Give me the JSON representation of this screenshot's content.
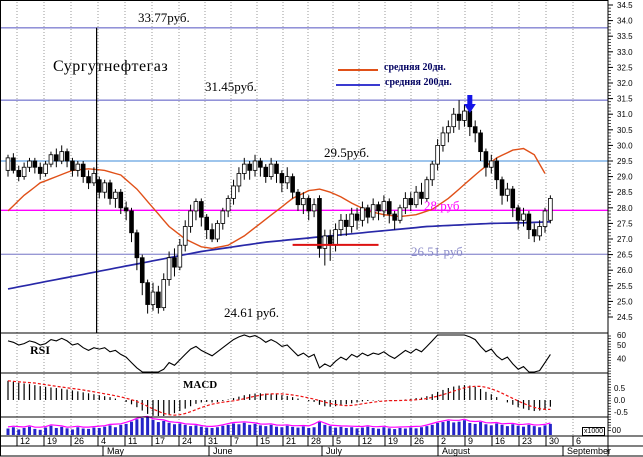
{
  "title": "Сургутнефтегаз",
  "legend": {
    "ma20_label": "средняя 20дн.",
    "ma200_label": "средняя 200дн."
  },
  "panel_labels": {
    "rsi": "RSI",
    "macd": "MACD",
    "volume_scale": "x1000",
    "volume_tick": "00"
  },
  "colors": {
    "level_periwinkle": "#8282d2",
    "level_lightblue": "#7fb2e6",
    "level_magenta": "#ff00ff",
    "level_gray_purple": "#9898d4",
    "ma20": "#e05018",
    "ma200": "#2828a8",
    "arrow_blue": "#1414e6",
    "support_red": "#dd1111",
    "volume_bar": "#2424c8",
    "volume_line": "#ff00ff",
    "macd_signal": "#ee1111",
    "candle_up": "#ffffff",
    "candle_down": "#000000"
  },
  "chart_data": {
    "type": "candlestick",
    "instrument": "Сургутнефтегаз",
    "currency_unit": "руб.",
    "levels": [
      {
        "label": "33.77руб.",
        "price": 33.77,
        "line_color": "#8282d2",
        "text_color": "#000000"
      },
      {
        "label": "31.45руб.",
        "price": 31.45,
        "line_color": "#8282d2",
        "text_color": "#000000"
      },
      {
        "label": "29.5руб.",
        "price": 29.5,
        "line_color": "#7fb2e6",
        "text_color": "#000000"
      },
      {
        "label": "28 руб",
        "price": 27.92,
        "line_color": "#ff00ff",
        "text_color": "#ff00ff"
      },
      {
        "label": "26.51 руб",
        "price": 26.51,
        "line_color": "#9898d4",
        "text_color": "#8b8bc8"
      }
    ],
    "low_marker": {
      "label": "24.61 руб.",
      "price": 24.61
    },
    "annotations": {
      "down_arrow": {
        "near_index": 86,
        "color": "#1414e6"
      },
      "vertical_line": {
        "x_index": 16.5
      },
      "support_segment": {
        "price": 26.81,
        "from_index": 53,
        "to_index": 69,
        "color": "#dd1111"
      }
    },
    "price_axis_ticks": [
      34.5,
      34.0,
      33.5,
      33.0,
      32.5,
      32.0,
      31.5,
      31.0,
      30.5,
      30.0,
      29.5,
      29.0,
      28.5,
      28.0,
      27.5,
      27.0,
      26.5,
      26.0,
      25.5,
      25.0,
      24.5
    ],
    "rsi_axis_ticks": [
      60,
      50,
      40
    ],
    "macd_axis_ticks": [
      "0.5",
      "0.0",
      "-0.5"
    ],
    "week_tick_x": [
      17,
      44,
      71,
      98,
      125,
      152,
      179,
      205,
      231,
      257,
      283,
      308,
      333,
      359,
      385,
      411,
      438,
      465,
      492,
      519,
      546,
      573
    ],
    "week_labels": [
      "12",
      "19",
      "26",
      "4",
      "11",
      "17",
      "24",
      "31",
      "7",
      "15",
      "21",
      "28",
      "5",
      "12",
      "19",
      "26",
      "2",
      "9",
      "16",
      "23",
      "30",
      "6"
    ],
    "month_x": [
      103,
      209,
      322,
      438,
      563
    ],
    "months": [
      "May",
      "June",
      "July",
      "August",
      "September"
    ],
    "candles_ohlc": [
      [
        29.2,
        29.7,
        29.0,
        29.6
      ],
      [
        29.6,
        29.75,
        29.1,
        29.2
      ],
      [
        29.2,
        29.35,
        28.85,
        29.0
      ],
      [
        29.0,
        29.45,
        28.9,
        29.3
      ],
      [
        29.3,
        29.6,
        29.15,
        29.5
      ],
      [
        29.5,
        29.6,
        29.1,
        29.3
      ],
      [
        29.3,
        29.45,
        28.9,
        29.1
      ],
      [
        29.1,
        29.5,
        29.0,
        29.4
      ],
      [
        29.4,
        29.8,
        29.3,
        29.7
      ],
      [
        29.7,
        29.9,
        29.3,
        29.5
      ],
      [
        29.5,
        30.0,
        29.4,
        29.8
      ],
      [
        29.8,
        29.9,
        29.3,
        29.5
      ],
      [
        29.5,
        29.6,
        29.0,
        29.2
      ],
      [
        29.2,
        29.5,
        29.0,
        29.4
      ],
      [
        29.4,
        29.5,
        28.8,
        29.0
      ],
      [
        29.0,
        29.2,
        28.6,
        28.8
      ],
      [
        28.8,
        29.3,
        28.7,
        29.1
      ],
      [
        28.9,
        29.0,
        28.3,
        28.5
      ],
      [
        28.5,
        28.9,
        28.3,
        28.8
      ],
      [
        28.8,
        28.9,
        28.1,
        28.3
      ],
      [
        28.3,
        28.6,
        28.0,
        28.5
      ],
      [
        28.5,
        28.6,
        27.8,
        28.0
      ],
      [
        28.0,
        28.2,
        27.6,
        27.9
      ],
      [
        27.9,
        28.0,
        26.9,
        27.2
      ],
      [
        27.2,
        27.3,
        26.0,
        26.4
      ],
      [
        26.4,
        26.5,
        25.2,
        25.6
      ],
      [
        25.6,
        25.7,
        24.61,
        24.9
      ],
      [
        24.9,
        25.6,
        24.7,
        25.3
      ],
      [
        25.3,
        25.5,
        24.61,
        24.8
      ],
      [
        24.8,
        25.9,
        24.7,
        25.7
      ],
      [
        25.7,
        26.6,
        25.5,
        26.4
      ],
      [
        26.4,
        26.7,
        25.8,
        26.1
      ],
      [
        26.1,
        27.0,
        26.0,
        26.8
      ],
      [
        26.8,
        27.6,
        26.6,
        27.4
      ],
      [
        27.4,
        28.1,
        27.2,
        27.9
      ],
      [
        27.9,
        28.3,
        27.6,
        28.2
      ],
      [
        28.2,
        28.3,
        27.4,
        27.7
      ],
      [
        27.7,
        27.8,
        27.0,
        27.3
      ],
      [
        27.3,
        27.5,
        26.9,
        27.0
      ],
      [
        27.0,
        27.6,
        26.9,
        27.5
      ],
      [
        27.5,
        28.0,
        27.3,
        27.9
      ],
      [
        27.9,
        28.4,
        27.7,
        28.3
      ],
      [
        28.3,
        28.9,
        28.1,
        28.7
      ],
      [
        28.7,
        29.3,
        28.5,
        29.1
      ],
      [
        29.1,
        29.6,
        28.9,
        29.4
      ],
      [
        29.4,
        29.5,
        28.9,
        29.2
      ],
      [
        29.2,
        29.7,
        29.0,
        29.5
      ],
      [
        29.5,
        29.6,
        29.0,
        29.3
      ],
      [
        29.3,
        29.4,
        28.8,
        29.0
      ],
      [
        29.0,
        29.6,
        28.9,
        29.4
      ],
      [
        29.4,
        29.5,
        28.8,
        29.1
      ],
      [
        29.1,
        29.2,
        28.5,
        28.8
      ],
      [
        28.8,
        29.3,
        28.6,
        29.0
      ],
      [
        29.0,
        29.1,
        28.3,
        28.5
      ],
      [
        28.5,
        28.6,
        27.9,
        28.1
      ],
      [
        28.1,
        28.5,
        27.8,
        28.3
      ],
      [
        28.3,
        28.4,
        27.6,
        27.9
      ],
      [
        27.9,
        28.3,
        27.7,
        28.1
      ],
      [
        28.3,
        28.4,
        26.4,
        26.7
      ],
      [
        26.7,
        27.3,
        26.15,
        27.1
      ],
      [
        27.1,
        27.3,
        26.3,
        26.8
      ],
      [
        26.8,
        27.5,
        26.6,
        27.3
      ],
      [
        27.3,
        27.8,
        27.1,
        27.6
      ],
      [
        27.6,
        27.8,
        27.1,
        27.4
      ],
      [
        27.4,
        28.0,
        27.2,
        27.8
      ],
      [
        27.8,
        28.0,
        27.3,
        27.6
      ],
      [
        27.6,
        28.2,
        27.4,
        28.0
      ],
      [
        28.0,
        28.1,
        27.5,
        27.7
      ],
      [
        27.7,
        28.3,
        27.6,
        28.1
      ],
      [
        28.1,
        28.2,
        27.6,
        27.9
      ],
      [
        27.9,
        28.4,
        27.7,
        28.2
      ],
      [
        28.2,
        28.3,
        27.5,
        27.8
      ],
      [
        27.8,
        27.9,
        27.3,
        27.6
      ],
      [
        27.6,
        28.1,
        27.5,
        28.0
      ],
      [
        28.0,
        28.5,
        27.8,
        28.3
      ],
      [
        28.3,
        28.5,
        27.9,
        28.1
      ],
      [
        28.1,
        28.7,
        28.0,
        28.5
      ],
      [
        28.5,
        28.8,
        28.1,
        28.3
      ],
      [
        28.3,
        29.0,
        28.2,
        28.9
      ],
      [
        28.9,
        29.5,
        28.7,
        29.4
      ],
      [
        29.4,
        30.2,
        29.2,
        30.0
      ],
      [
        30.0,
        30.6,
        29.8,
        30.4
      ],
      [
        30.4,
        30.8,
        30.1,
        30.6
      ],
      [
        30.6,
        31.2,
        30.4,
        31.0
      ],
      [
        31.0,
        31.45,
        30.5,
        30.8
      ],
      [
        30.8,
        31.3,
        30.6,
        31.1
      ],
      [
        31.1,
        31.2,
        30.3,
        30.6
      ],
      [
        30.6,
        30.8,
        30.1,
        30.4
      ],
      [
        30.4,
        30.5,
        29.5,
        29.8
      ],
      [
        29.8,
        29.9,
        29.0,
        29.3
      ],
      [
        29.3,
        29.7,
        29.1,
        29.5
      ],
      [
        29.5,
        29.6,
        28.6,
        28.9
      ],
      [
        28.9,
        29.0,
        28.1,
        28.4
      ],
      [
        28.4,
        28.8,
        28.2,
        28.6
      ],
      [
        28.6,
        28.7,
        27.7,
        28.0
      ],
      [
        28.0,
        28.1,
        27.3,
        27.6
      ],
      [
        27.6,
        28.0,
        27.4,
        27.8
      ],
      [
        27.8,
        27.9,
        27.0,
        27.3
      ],
      [
        27.3,
        27.5,
        26.9,
        27.1
      ],
      [
        27.1,
        27.6,
        26.95,
        27.4
      ],
      [
        27.4,
        28.0,
        27.2,
        27.9
      ],
      [
        27.6,
        28.4,
        27.5,
        28.3
      ]
    ],
    "ma20_anchors": [
      [
        0,
        27.9
      ],
      [
        3,
        28.4
      ],
      [
        6,
        28.8
      ],
      [
        9,
        29.0
      ],
      [
        12,
        29.2
      ],
      [
        15,
        29.25
      ],
      [
        18,
        29.2
      ],
      [
        21,
        29.05
      ],
      [
        24,
        28.6
      ],
      [
        27,
        28.0
      ],
      [
        30,
        27.4
      ],
      [
        33,
        27.0
      ],
      [
        36,
        26.75
      ],
      [
        38,
        26.7
      ],
      [
        41,
        26.8
      ],
      [
        44,
        27.1
      ],
      [
        47,
        27.5
      ],
      [
        50,
        27.9
      ],
      [
        53,
        28.3
      ],
      [
        56,
        28.55
      ],
      [
        58,
        28.6
      ],
      [
        60,
        28.5
      ],
      [
        62,
        28.35
      ],
      [
        64,
        28.15
      ],
      [
        67,
        27.9
      ],
      [
        70,
        27.78
      ],
      [
        73,
        27.72
      ],
      [
        76,
        27.78
      ],
      [
        79,
        27.95
      ],
      [
        82,
        28.3
      ],
      [
        85,
        28.75
      ],
      [
        88,
        29.2
      ],
      [
        91,
        29.6
      ],
      [
        94,
        29.85
      ],
      [
        96,
        29.9
      ],
      [
        98,
        29.7
      ],
      [
        100,
        29.1
      ]
    ],
    "ma200_anchors": [
      [
        0,
        25.4
      ],
      [
        6,
        25.6
      ],
      [
        12,
        25.8
      ],
      [
        18,
        26.0
      ],
      [
        24,
        26.2
      ],
      [
        30,
        26.4
      ],
      [
        36,
        26.6
      ],
      [
        42,
        26.75
      ],
      [
        48,
        26.9
      ],
      [
        54,
        27.0
      ],
      [
        60,
        27.1
      ],
      [
        66,
        27.2
      ],
      [
        72,
        27.3
      ],
      [
        78,
        27.4
      ],
      [
        84,
        27.45
      ],
      [
        90,
        27.5
      ],
      [
        96,
        27.52
      ],
      [
        101,
        27.55
      ]
    ],
    "rsi": [
      53,
      52,
      50,
      51,
      53,
      52,
      50,
      51,
      54,
      53,
      55,
      53,
      50,
      51,
      48,
      46,
      48,
      47,
      48,
      45,
      46,
      43,
      41,
      37,
      33,
      29,
      26,
      30,
      27,
      32,
      37,
      35,
      39,
      43,
      47,
      49,
      46,
      44,
      42,
      45,
      48,
      51,
      54,
      56,
      58,
      56,
      57,
      55,
      52,
      54,
      52,
      49,
      50,
      46,
      42,
      44,
      41,
      43,
      33,
      36,
      34,
      38,
      41,
      39,
      43,
      41,
      44,
      42,
      44,
      43,
      45,
      42,
      40,
      43,
      46,
      44,
      47,
      45,
      49,
      53,
      58,
      60,
      61,
      62,
      60,
      61,
      56,
      54,
      49,
      45,
      47,
      42,
      39,
      41,
      36,
      32,
      34,
      30,
      28,
      31,
      37,
      43
    ],
    "macd_hist": [
      0.8,
      0.76,
      0.72,
      0.69,
      0.66,
      0.62,
      0.58,
      0.55,
      0.52,
      0.5,
      0.47,
      0.44,
      0.4,
      0.36,
      0.32,
      0.28,
      0.24,
      0.2,
      0.16,
      0.12,
      0.06,
      0.0,
      -0.08,
      -0.18,
      -0.3,
      -0.44,
      -0.58,
      -0.66,
      -0.7,
      -0.68,
      -0.62,
      -0.55,
      -0.46,
      -0.36,
      -0.26,
      -0.16,
      -0.1,
      -0.08,
      -0.1,
      -0.08,
      -0.04,
      0.02,
      0.08,
      0.14,
      0.2,
      0.24,
      0.27,
      0.28,
      0.27,
      0.26,
      0.24,
      0.2,
      0.17,
      0.12,
      0.06,
      0.0,
      -0.05,
      -0.08,
      -0.2,
      -0.26,
      -0.28,
      -0.26,
      -0.22,
      -0.18,
      -0.14,
      -0.1,
      -0.06,
      -0.04,
      -0.02,
      -0.02,
      0.0,
      -0.02,
      -0.04,
      -0.02,
      0.02,
      0.04,
      0.08,
      0.1,
      0.16,
      0.24,
      0.34,
      0.42,
      0.5,
      0.56,
      0.6,
      0.62,
      0.6,
      0.55,
      0.46,
      0.34,
      0.24,
      0.12,
      0.0,
      -0.1,
      -0.2,
      -0.3,
      -0.36,
      -0.42,
      -0.46,
      -0.44,
      -0.38,
      -0.28
    ],
    "volume": [
      35,
      42,
      30,
      38,
      45,
      33,
      28,
      40,
      50,
      38,
      44,
      36,
      30,
      42,
      35,
      33,
      40,
      38,
      45,
      52,
      42,
      55,
      60,
      72,
      85,
      92,
      95,
      82,
      70,
      76,
      66,
      58,
      62,
      55,
      48,
      52,
      45,
      40,
      38,
      42,
      50,
      55,
      62,
      58,
      66,
      55,
      60,
      52,
      48,
      55,
      45,
      42,
      50,
      44,
      40,
      46,
      38,
      42,
      70,
      55,
      48,
      40,
      44,
      38,
      42,
      36,
      40,
      45,
      38,
      34,
      42,
      36,
      32,
      38,
      35,
      40,
      36,
      42,
      48,
      55,
      65,
      70,
      76,
      68,
      72,
      80,
      65,
      60,
      70,
      58,
      52,
      62,
      55,
      48,
      58,
      50,
      45,
      55,
      48,
      42,
      52,
      60
    ]
  }
}
